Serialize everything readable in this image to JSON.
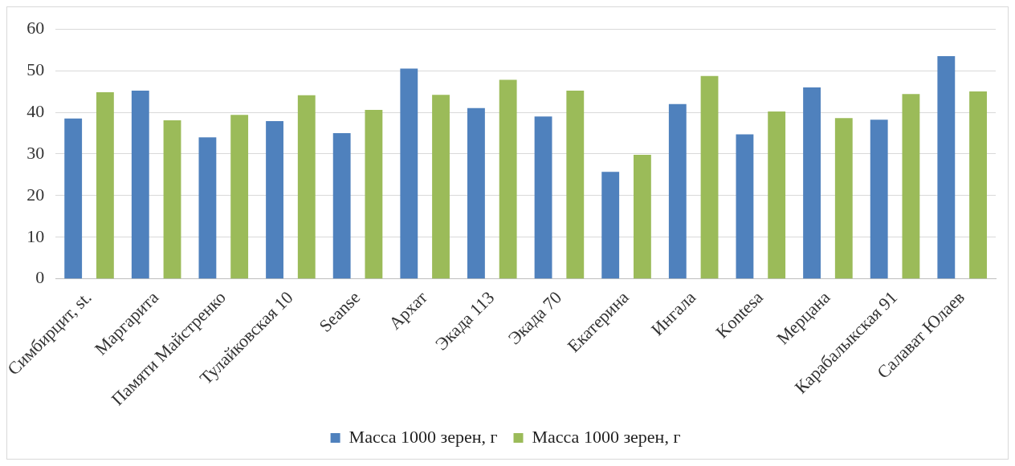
{
  "chart_data": {
    "type": "bar",
    "categories": [
      "Симбирцит, st.",
      "Маргарита",
      "Памяти Майстренко",
      "Тулайковская 10",
      "Seanse",
      "Архат",
      "Экада 113",
      "Экада 70",
      "Екатерина",
      "Ингала",
      "Kontesa",
      "Мерцана",
      "Карабалыкская 91",
      "Салават Юлаев"
    ],
    "series": [
      {
        "name": "Масса 1000 зерен, г",
        "color": "#4f81bd",
        "values": [
          38.5,
          45.2,
          34,
          37.9,
          35,
          50.5,
          41,
          39,
          25.7,
          42,
          34.7,
          46,
          38.2,
          53.5
        ]
      },
      {
        "name": "Масса 1000 зерен, г",
        "color": "#9bbb59",
        "values": [
          44.8,
          38.1,
          39.4,
          44.1,
          40.6,
          44.2,
          47.8,
          45.2,
          29.8,
          48.7,
          40.2,
          38.6,
          44.4,
          45
        ]
      }
    ],
    "ylim": [
      0,
      60
    ],
    "yticks": [
      0,
      10,
      20,
      30,
      40,
      50,
      60
    ],
    "grid": "y",
    "legend": "bottom"
  }
}
